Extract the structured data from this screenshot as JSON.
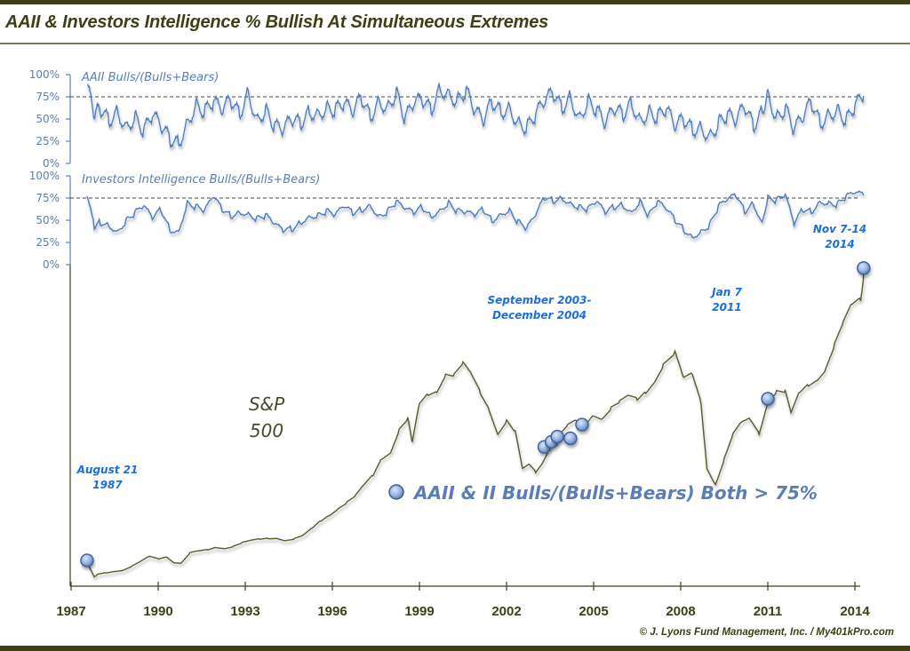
{
  "title": "AAII & Investors Intelligence % Bullish At Simultaneous Extremes",
  "credit": "© J. Lyons Fund Management, Inc. / My401kPro.com",
  "chart_data": [
    {
      "type": "line",
      "name": "aaii-panel",
      "title": "AAII Bulls/(Bulls+Bears)",
      "ylim": [
        0,
        100
      ],
      "yticks": [
        "100%",
        "75%",
        "50%",
        "25%",
        "0%"
      ],
      "ytick_values": [
        100,
        75,
        50,
        25,
        0
      ],
      "threshold": 75,
      "xlim": [
        1987,
        2014.3
      ],
      "x": [
        1987.55,
        1987.8,
        1988.0,
        1988.3,
        1988.6,
        1988.9,
        1989.2,
        1989.5,
        1989.8,
        1990.1,
        1990.4,
        1990.7,
        1991.0,
        1991.3,
        1991.6,
        1991.9,
        1992.2,
        1992.5,
        1992.8,
        1993.1,
        1993.4,
        1993.7,
        1994.0,
        1994.3,
        1994.6,
        1994.9,
        1995.2,
        1995.5,
        1995.8,
        1996.1,
        1996.4,
        1996.7,
        1997.0,
        1997.3,
        1997.6,
        1997.9,
        1998.2,
        1998.5,
        1998.8,
        1999.1,
        1999.4,
        1999.7,
        2000.0,
        2000.3,
        2000.6,
        2000.9,
        2001.2,
        2001.5,
        2001.8,
        2002.1,
        2002.4,
        2002.7,
        2003.0,
        2003.3,
        2003.6,
        2003.9,
        2004.2,
        2004.5,
        2004.8,
        2005.1,
        2005.4,
        2005.7,
        2006.0,
        2006.3,
        2006.6,
        2006.9,
        2007.2,
        2007.5,
        2007.8,
        2008.1,
        2008.4,
        2008.7,
        2009.0,
        2009.3,
        2009.6,
        2009.9,
        2010.2,
        2010.5,
        2010.8,
        2011.0,
        2011.3,
        2011.6,
        2011.9,
        2012.2,
        2012.5,
        2012.8,
        2013.1,
        2013.4,
        2013.7,
        2014.0,
        2014.3
      ],
      "values": [
        88,
        55,
        62,
        48,
        58,
        40,
        52,
        36,
        55,
        42,
        28,
        22,
        45,
        66,
        58,
        70,
        60,
        72,
        55,
        80,
        48,
        60,
        42,
        38,
        50,
        45,
        58,
        55,
        62,
        60,
        68,
        58,
        75,
        52,
        70,
        62,
        80,
        50,
        68,
        72,
        60,
        84,
        78,
        70,
        82,
        60,
        48,
        70,
        58,
        62,
        45,
        40,
        55,
        70,
        80,
        62,
        75,
        50,
        70,
        60,
        45,
        62,
        55,
        68,
        48,
        58,
        52,
        62,
        42,
        50,
        38,
        40,
        30,
        45,
        55,
        48,
        65,
        42,
        58,
        78,
        50,
        62,
        38,
        52,
        70,
        45,
        55,
        60,
        48,
        65,
        76
      ],
      "color": "#4a7cc0"
    },
    {
      "type": "line",
      "name": "ii-panel",
      "title": "Investors Intelligence Bulls/(Bulls+Bears)",
      "ylim": [
        0,
        100
      ],
      "yticks": [
        "100%",
        "75%",
        "50%",
        "25%",
        "0%"
      ],
      "ytick_values": [
        100,
        75,
        50,
        25,
        0
      ],
      "threshold": 75,
      "xlim": [
        1987,
        2014.3
      ],
      "x": [
        1987.55,
        1987.8,
        1988.0,
        1988.3,
        1988.6,
        1988.9,
        1989.2,
        1989.5,
        1989.8,
        1990.1,
        1990.4,
        1990.7,
        1991.0,
        1991.3,
        1991.6,
        1991.9,
        1992.2,
        1992.5,
        1992.8,
        1993.1,
        1993.4,
        1993.7,
        1994.0,
        1994.3,
        1994.6,
        1994.9,
        1995.2,
        1995.5,
        1995.8,
        1996.1,
        1996.4,
        1996.7,
        1997.0,
        1997.3,
        1997.6,
        1997.9,
        1998.2,
        1998.5,
        1998.8,
        1999.1,
        1999.4,
        1999.7,
        2000.0,
        2000.3,
        2000.6,
        2000.9,
        2001.2,
        2001.5,
        2001.8,
        2002.1,
        2002.4,
        2002.7,
        2003.0,
        2003.3,
        2003.6,
        2003.9,
        2004.2,
        2004.5,
        2004.8,
        2005.1,
        2005.4,
        2005.7,
        2006.0,
        2006.3,
        2006.6,
        2006.9,
        2007.2,
        2007.5,
        2007.8,
        2008.1,
        2008.4,
        2008.7,
        2009.0,
        2009.3,
        2009.6,
        2009.9,
        2010.2,
        2010.5,
        2010.8,
        2011.0,
        2011.3,
        2011.6,
        2011.9,
        2012.2,
        2012.5,
        2012.8,
        2013.1,
        2013.4,
        2013.7,
        2014.0,
        2014.3
      ],
      "values": [
        77,
        42,
        48,
        45,
        38,
        50,
        58,
        65,
        52,
        62,
        40,
        38,
        70,
        65,
        60,
        76,
        62,
        55,
        60,
        58,
        52,
        55,
        45,
        38,
        40,
        48,
        55,
        56,
        60,
        55,
        65,
        58,
        62,
        68,
        55,
        60,
        70,
        62,
        58,
        65,
        55,
        62,
        70,
        60,
        58,
        55,
        62,
        50,
        58,
        62,
        48,
        40,
        55,
        75,
        72,
        76,
        70,
        65,
        62,
        70,
        58,
        65,
        68,
        60,
        72,
        55,
        70,
        62,
        50,
        40,
        32,
        38,
        45,
        65,
        72,
        78,
        60,
        70,
        48,
        76,
        72,
        78,
        45,
        62,
        60,
        72,
        70,
        68,
        76,
        80,
        78
      ],
      "color": "#4a7cc0"
    },
    {
      "type": "line",
      "name": "sp500-panel",
      "title": "S&P 500",
      "xlabel": "",
      "xticks": [
        "1987",
        "1990",
        "1993",
        "1996",
        "1999",
        "2002",
        "2005",
        "2008",
        "2011",
        "2014"
      ],
      "xtick_values": [
        1987,
        1990,
        1993,
        1996,
        1999,
        2002,
        2005,
        2008,
        2011,
        2014
      ],
      "xlim": [
        1987,
        2014.3
      ],
      "ylim": [
        180,
        2050
      ],
      "x": [
        1987.55,
        1987.65,
        1987.8,
        1987.95,
        1988.2,
        1988.5,
        1988.8,
        1989.1,
        1989.4,
        1989.7,
        1990.0,
        1990.3,
        1990.55,
        1990.8,
        1991.1,
        1991.4,
        1991.7,
        1992.0,
        1992.3,
        1992.6,
        1992.9,
        1993.2,
        1993.5,
        1993.8,
        1994.1,
        1994.4,
        1994.7,
        1995.0,
        1995.3,
        1995.6,
        1995.9,
        1996.2,
        1996.5,
        1996.8,
        1997.1,
        1997.4,
        1997.7,
        1998.0,
        1998.3,
        1998.6,
        1998.75,
        1999.0,
        1999.3,
        1999.6,
        1999.9,
        2000.2,
        2000.5,
        2000.8,
        2001.1,
        2001.4,
        2001.7,
        2002.0,
        2002.3,
        2002.55,
        2002.8,
        2003.0,
        2003.2,
        2003.5,
        2003.8,
        2004.1,
        2004.4,
        2004.7,
        2005.0,
        2005.3,
        2005.6,
        2005.9,
        2006.2,
        2006.5,
        2006.8,
        2007.1,
        2007.4,
        2007.8,
        2008.1,
        2008.4,
        2008.7,
        2008.9,
        2009.2,
        2009.5,
        2009.8,
        2010.1,
        2010.4,
        2010.7,
        2011.0,
        2011.3,
        2011.6,
        2011.8,
        2012.1,
        2012.4,
        2012.7,
        2013.0,
        2013.3,
        2013.6,
        2013.9,
        2014.2,
        2014.3
      ],
      "values": [
        330,
        280,
        230,
        250,
        260,
        270,
        275,
        295,
        320,
        350,
        340,
        355,
        320,
        315,
        370,
        380,
        390,
        410,
        405,
        415,
        430,
        440,
        450,
        460,
        465,
        450,
        455,
        470,
        510,
        560,
        600,
        640,
        670,
        700,
        760,
        820,
        930,
        970,
        1100,
        1150,
        1000,
        1230,
        1300,
        1330,
        1430,
        1410,
        1460,
        1390,
        1300,
        1220,
        1080,
        1150,
        1070,
        850,
        880,
        850,
        900,
        1000,
        1050,
        1100,
        1130,
        1120,
        1190,
        1170,
        1220,
        1240,
        1270,
        1260,
        1320,
        1390,
        1480,
        1530,
        1370,
        1400,
        1250,
        880,
        780,
        920,
        1050,
        1120,
        1150,
        1080,
        1270,
        1320,
        1300,
        1170,
        1300,
        1360,
        1400,
        1460,
        1580,
        1690,
        1800,
        1850,
        2000
      ],
      "color": "#5a5a2c",
      "annotations": [
        {
          "label_lines": [
            "August 21",
            "1987"
          ],
          "x": 1987.55,
          "y": 330
        },
        {
          "label_lines": [
            "September 2003-",
            "December 2004"
          ],
          "x": 2003.7,
          "y": 1030
        },
        {
          "label_lines": [
            "Jan 7",
            "2011"
          ],
          "x": 2011.0,
          "y": 1270
        },
        {
          "label_lines": [
            "Nov 7-14",
            "2014"
          ],
          "x": 2014.3,
          "y": 2030
        }
      ],
      "signal_points": [
        {
          "x": 1987.55,
          "y": 330
        },
        {
          "x": 2003.3,
          "y": 990
        },
        {
          "x": 2003.55,
          "y": 1020
        },
        {
          "x": 2003.75,
          "y": 1050
        },
        {
          "x": 2004.2,
          "y": 1040
        },
        {
          "x": 2004.6,
          "y": 1120
        },
        {
          "x": 2011.0,
          "y": 1270
        },
        {
          "x": 2014.3,
          "y": 2030
        }
      ],
      "label_lines": [
        "S&P",
        "500"
      ],
      "legend": {
        "text": "AAII & II Bulls/(Bulls+Bears) Both >  75%",
        "position": "bottom-right"
      }
    }
  ]
}
